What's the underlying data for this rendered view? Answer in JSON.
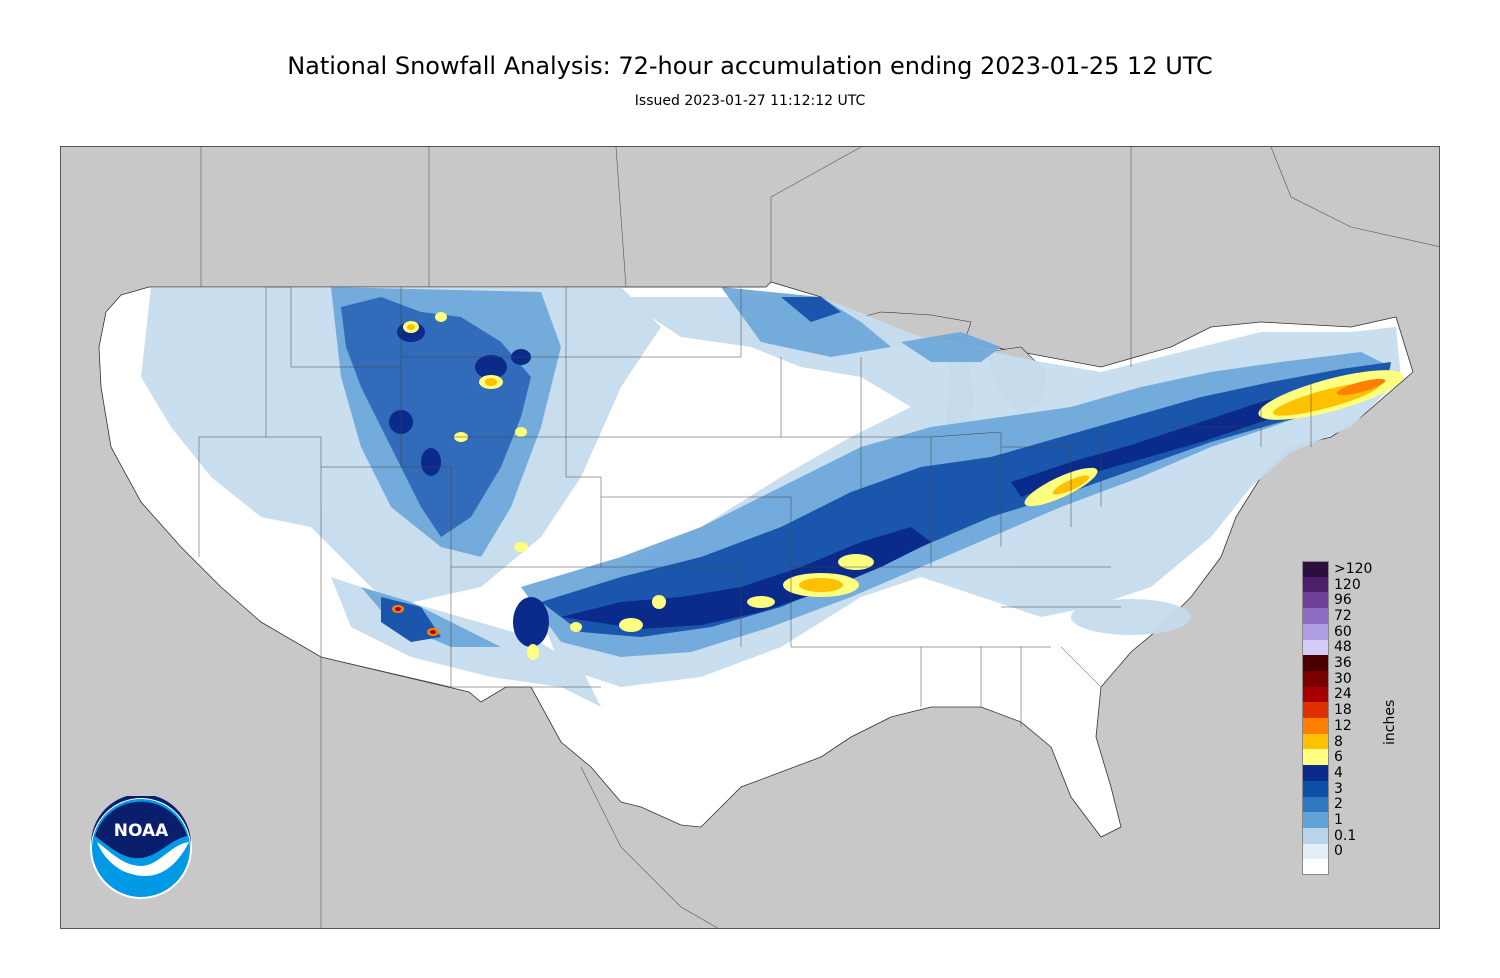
{
  "title": "National Snowfall Analysis: 72-hour accumulation ending 2023-01-25 12 UTC",
  "subtitle": "Issued 2023-01-27 11:12:12 UTC",
  "legend": {
    "units": "inches",
    "bins": [
      {
        "label": ">120",
        "color": "#2b0f3f"
      },
      {
        "label": "120",
        "color": "#4c1e6b"
      },
      {
        "label": "96",
        "color": "#6e3f98"
      },
      {
        "label": "72",
        "color": "#8e6cc3"
      },
      {
        "label": "60",
        "color": "#b09ee2"
      },
      {
        "label": "48",
        "color": "#d3ccf8"
      },
      {
        "label": "36",
        "color": "#4a0000"
      },
      {
        "label": "30",
        "color": "#7a0000"
      },
      {
        "label": "24",
        "color": "#a80000"
      },
      {
        "label": "18",
        "color": "#e03000"
      },
      {
        "label": "12",
        "color": "#ff8000"
      },
      {
        "label": "8",
        "color": "#ffc000"
      },
      {
        "label": "6",
        "color": "#ffff80"
      },
      {
        "label": "4",
        "color": "#0a2a8c"
      },
      {
        "label": "3",
        "color": "#0c4fa6"
      },
      {
        "label": "2",
        "color": "#2f78c2"
      },
      {
        "label": "1",
        "color": "#5fa3d8"
      },
      {
        "label": "0.1",
        "color": "#b7d4ea"
      },
      {
        "label": "0",
        "color": "#e4eef7"
      },
      {
        "label": "",
        "color": "#ffffff"
      }
    ]
  },
  "logo": {
    "text": "NOAA",
    "icon": "noaa-logo-icon"
  },
  "colors": {
    "background_land": "#c8c8c8",
    "conus": "#ffffff",
    "snow_light": "#c6dcee",
    "snow_med": "#6fa9da",
    "snow_heavy": "#1b56ad",
    "snow_deep": "#0a2a8c",
    "snow_8": "#ffc000",
    "snow_12": "#ff9a00"
  }
}
